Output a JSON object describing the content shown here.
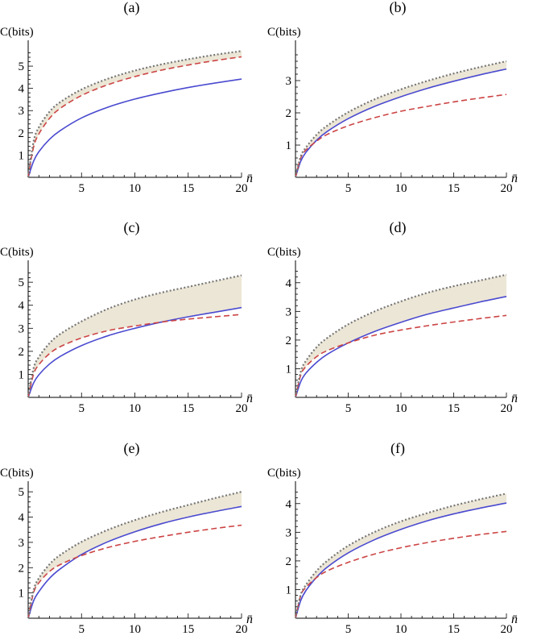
{
  "chart_data": [
    {
      "type": "line",
      "title": "(a)",
      "ylabel": "C(bits)",
      "xlabel": "n̄",
      "xlim": [
        0,
        20
      ],
      "ylim": [
        0,
        5.8
      ],
      "xticks": [
        5,
        10,
        15,
        20
      ],
      "yticks": [
        1,
        2,
        3,
        4,
        5
      ],
      "x": [
        0,
        0.5,
        1,
        2,
        3,
        5,
        7.5,
        10,
        12.5,
        15,
        17.5,
        20
      ],
      "series": [
        {
          "style": "solid",
          "color": "#4a4ad0",
          "values": [
            0,
            0.72,
            1.15,
            1.71,
            2.1,
            2.67,
            3.16,
            3.52,
            3.8,
            4.04,
            4.24,
            4.42
          ]
        },
        {
          "style": "dashed",
          "color": "#cc4444",
          "values": [
            0,
            1.35,
            1.95,
            2.65,
            3.1,
            3.68,
            4.17,
            4.53,
            4.82,
            5.05,
            5.25,
            5.42
          ]
        },
        {
          "style": "dotted",
          "color": "#777777",
          "values": [
            0,
            1.6,
            2.25,
            2.95,
            3.38,
            3.95,
            4.44,
            4.8,
            5.08,
            5.31,
            5.51,
            5.68
          ]
        }
      ],
      "shaded_region": "between dashed and dotted"
    },
    {
      "type": "line",
      "title": "(b)",
      "ylabel": "C(bits)",
      "xlabel": "n̄",
      "xlim": [
        0,
        20
      ],
      "ylim": [
        0,
        4
      ],
      "xticks": [
        5,
        10,
        15,
        20
      ],
      "yticks": [
        1,
        2,
        3
      ],
      "x": [
        0,
        0.5,
        1,
        2,
        3,
        5,
        7.5,
        10,
        12.5,
        15,
        17.5,
        20
      ],
      "series": [
        {
          "style": "solid",
          "color": "#4a4ad0",
          "values": [
            0,
            0.5,
            0.78,
            1.15,
            1.42,
            1.82,
            2.2,
            2.5,
            2.76,
            2.98,
            3.18,
            3.36
          ]
        },
        {
          "style": "dashed",
          "color": "#cc4444",
          "values": [
            0,
            0.6,
            0.85,
            1.12,
            1.33,
            1.6,
            1.85,
            2.05,
            2.2,
            2.34,
            2.46,
            2.57
          ]
        },
        {
          "style": "dotted",
          "color": "#777777",
          "values": [
            0,
            0.65,
            0.93,
            1.32,
            1.6,
            2.02,
            2.42,
            2.73,
            2.99,
            3.22,
            3.42,
            3.6
          ]
        }
      ],
      "shaded_region": "between solid and dotted"
    },
    {
      "type": "line",
      "title": "(c)",
      "ylabel": "C(bits)",
      "xlabel": "n̄",
      "xlim": [
        0,
        20
      ],
      "ylim": [
        0,
        5.6
      ],
      "xticks": [
        5,
        10,
        15,
        20
      ],
      "yticks": [
        1,
        2,
        3,
        4,
        5
      ],
      "x": [
        0,
        0.5,
        1,
        2,
        3,
        5,
        7.5,
        10,
        12.5,
        15,
        17.5,
        20
      ],
      "series": [
        {
          "style": "solid",
          "color": "#4a4ad0",
          "values": [
            0,
            0.62,
            0.98,
            1.45,
            1.78,
            2.25,
            2.68,
            3.0,
            3.27,
            3.5,
            3.7,
            3.9
          ]
        },
        {
          "style": "dashed",
          "color": "#cc4444",
          "values": [
            0,
            1.0,
            1.42,
            1.9,
            2.2,
            2.58,
            2.9,
            3.1,
            3.27,
            3.4,
            3.5,
            3.6
          ]
        },
        {
          "style": "dotted",
          "color": "#777777",
          "values": [
            0,
            1.25,
            1.75,
            2.35,
            2.75,
            3.3,
            3.85,
            4.25,
            4.55,
            4.8,
            5.05,
            5.3
          ]
        }
      ],
      "shaded_region": "between upper solid/dashed and dotted"
    },
    {
      "type": "line",
      "title": "(d)",
      "ylabel": "C(bits)",
      "xlabel": "n̄",
      "xlim": [
        0,
        20
      ],
      "ylim": [
        0,
        4.5
      ],
      "xticks": [
        5,
        10,
        15,
        20
      ],
      "yticks": [
        1,
        2,
        3,
        4
      ],
      "x": [
        0,
        0.5,
        1,
        2,
        3,
        5,
        7.5,
        10,
        12.5,
        15,
        17.5,
        20
      ],
      "series": [
        {
          "style": "solid",
          "color": "#4a4ad0",
          "values": [
            0,
            0.55,
            0.85,
            1.22,
            1.5,
            1.9,
            2.3,
            2.62,
            2.9,
            3.12,
            3.33,
            3.52
          ]
        },
        {
          "style": "dashed",
          "color": "#cc4444",
          "values": [
            0,
            0.78,
            1.08,
            1.42,
            1.63,
            1.9,
            2.17,
            2.35,
            2.5,
            2.63,
            2.75,
            2.86
          ]
        },
        {
          "style": "dotted",
          "color": "#777777",
          "values": [
            0,
            0.9,
            1.28,
            1.75,
            2.07,
            2.55,
            3.0,
            3.35,
            3.65,
            3.88,
            4.08,
            4.28
          ]
        }
      ],
      "shaded_region": "between upper solid/dashed and dotted"
    },
    {
      "type": "line",
      "title": "(e)",
      "ylabel": "C(bits)",
      "xlabel": "n̄",
      "xlim": [
        0,
        20
      ],
      "ylim": [
        0,
        5.1
      ],
      "xticks": [
        5,
        10,
        15,
        20
      ],
      "yticks": [
        1,
        2,
        3,
        4,
        5
      ],
      "x": [
        0,
        0.5,
        1,
        2,
        3,
        5,
        7.5,
        10,
        12.5,
        15,
        17.5,
        20
      ],
      "series": [
        {
          "style": "solid",
          "color": "#4a4ad0",
          "values": [
            0,
            0.68,
            1.05,
            1.58,
            1.95,
            2.52,
            3.03,
            3.42,
            3.74,
            4.0,
            4.22,
            4.42
          ]
        },
        {
          "style": "dashed",
          "color": "#cc4444",
          "values": [
            0,
            1.0,
            1.4,
            1.85,
            2.12,
            2.48,
            2.8,
            3.04,
            3.23,
            3.4,
            3.55,
            3.68
          ]
        },
        {
          "style": "dotted",
          "color": "#777777",
          "values": [
            0,
            1.1,
            1.58,
            2.13,
            2.5,
            3.02,
            3.5,
            3.88,
            4.2,
            4.48,
            4.75,
            5.0
          ]
        }
      ],
      "shaded_region": "between upper solid/dashed and dotted"
    },
    {
      "type": "line",
      "title": "(f)",
      "ylabel": "C(bits)",
      "xlabel": "n̄",
      "xlim": [
        0,
        20
      ],
      "ylim": [
        0,
        4.5
      ],
      "xticks": [
        5,
        10,
        15,
        20
      ],
      "yticks": [
        1,
        2,
        3,
        4
      ],
      "x": [
        0,
        0.5,
        1,
        2,
        3,
        5,
        7.5,
        10,
        12.5,
        15,
        17.5,
        20
      ],
      "series": [
        {
          "style": "solid",
          "color": "#4a4ad0",
          "values": [
            0,
            0.62,
            0.97,
            1.43,
            1.78,
            2.28,
            2.74,
            3.1,
            3.4,
            3.64,
            3.84,
            4.02
          ]
        },
        {
          "style": "dashed",
          "color": "#cc4444",
          "values": [
            0,
            0.8,
            1.08,
            1.42,
            1.65,
            1.95,
            2.24,
            2.46,
            2.64,
            2.79,
            2.92,
            3.03
          ]
        },
        {
          "style": "dotted",
          "color": "#777777",
          "values": [
            0,
            0.82,
            1.17,
            1.65,
            2.0,
            2.53,
            3.01,
            3.38,
            3.67,
            3.93,
            4.15,
            4.35
          ]
        }
      ],
      "shaded_region": "between solid and dotted"
    }
  ]
}
